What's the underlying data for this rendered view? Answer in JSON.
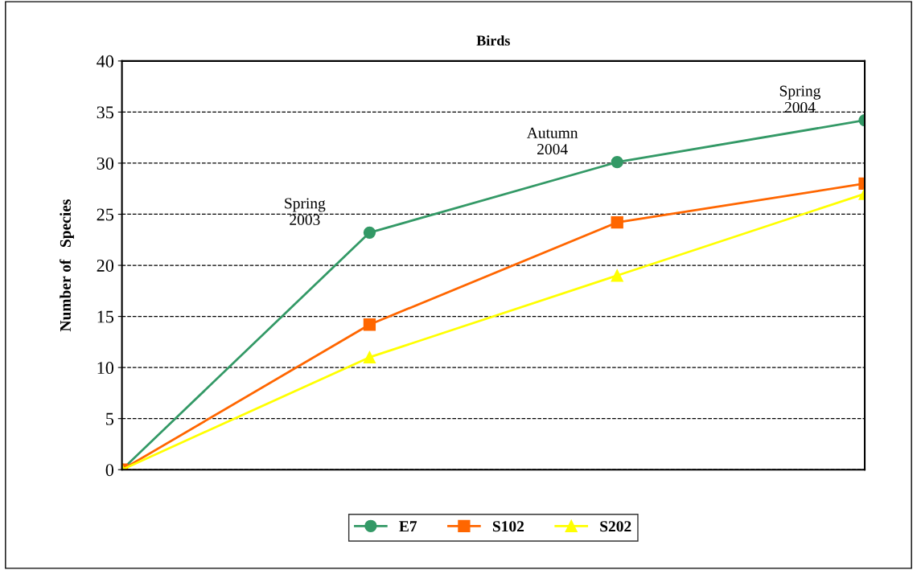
{
  "chart_data": {
    "type": "line",
    "title": "Birds",
    "ylabel": "Number of   Species",
    "categories": [
      null,
      null,
      null,
      null
    ],
    "series": [
      {
        "name": "E7",
        "color": "#339966",
        "marker": "circle",
        "values": [
          0,
          23.2,
          30.1,
          34.2
        ]
      },
      {
        "name": "S102",
        "color": "#ff6600",
        "marker": "square",
        "values": [
          0,
          14.2,
          24.2,
          28
        ]
      },
      {
        "name": "S202",
        "color": "#ffff00",
        "marker": "triangle",
        "values": [
          0,
          11,
          19,
          27
        ]
      }
    ],
    "annotations": [
      "Spring\n2003",
      "Autumn\n2004",
      "Spring\n2004"
    ],
    "ylim": [
      0,
      40
    ],
    "yticks": [
      0,
      5,
      10,
      15,
      20,
      25,
      30,
      35,
      40
    ],
    "grid": "y",
    "legend": "bottom"
  }
}
